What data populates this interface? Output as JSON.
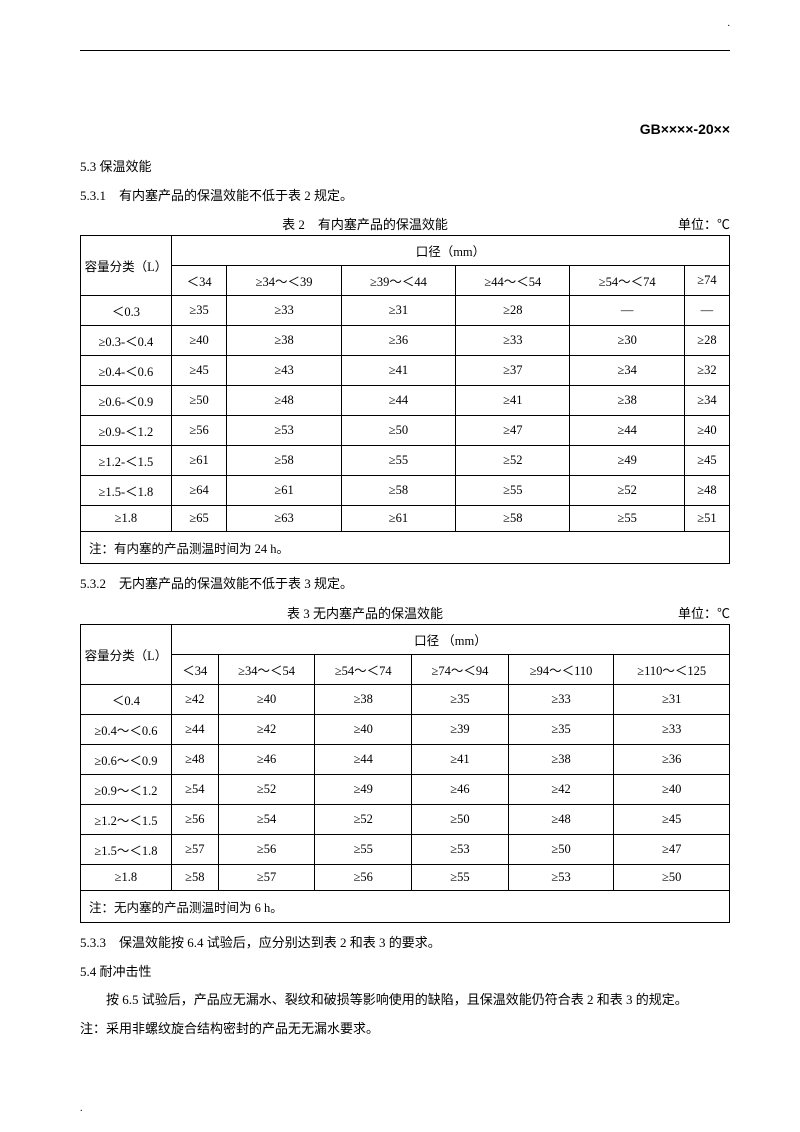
{
  "header": {
    "code": "GB××××-20××"
  },
  "s53": {
    "num": "5.3",
    "title": "保温效能",
    "s531": "5.3.1　有内塞产品的保温效能不低于表 2 规定。",
    "s532": "5.3.2　无内塞产品的保温效能不低于表 3 规定。",
    "s533": "5.3.3　保温效能按 6.4 试验后，应分别达到表 2 和表 3 的要求。"
  },
  "s54": {
    "num": "5.4",
    "title": "耐冲击性",
    "body": "按 6.5 试验后，产品应无漏水、裂纹和破损等影响使用的缺陷，且保温效能仍符合表 2 和表 3 的规定。",
    "note": "注：采用非螺纹旋合结构密封的产品无无漏水要求。"
  },
  "t2": {
    "caption": "表 2　有内塞产品的保温效能",
    "unit": "单位：℃",
    "colhead": "容量分类（L）",
    "diamhead": "口径（mm）",
    "cols": [
      "＜34",
      "≥34～＜39",
      "≥39～＜44",
      "≥44～＜54",
      "≥54～＜74",
      "≥74"
    ],
    "rows": [
      {
        "cap": "＜0.3",
        "v": [
          "≥35",
          "≥33",
          "≥31",
          "≥28",
          "—",
          "—"
        ]
      },
      {
        "cap": "≥0.3-＜0.4",
        "v": [
          "≥40",
          "≥38",
          "≥36",
          "≥33",
          "≥30",
          "≥28"
        ]
      },
      {
        "cap": "≥0.4-＜0.6",
        "v": [
          "≥45",
          "≥43",
          "≥41",
          "≥37",
          "≥34",
          "≥32"
        ]
      },
      {
        "cap": "≥0.6-＜0.9",
        "v": [
          "≥50",
          "≥48",
          "≥44",
          "≥41",
          "≥38",
          "≥34"
        ]
      },
      {
        "cap": "≥0.9-＜1.2",
        "v": [
          "≥56",
          "≥53",
          "≥50",
          "≥47",
          "≥44",
          "≥40"
        ]
      },
      {
        "cap": "≥1.2-＜1.5",
        "v": [
          "≥61",
          "≥58",
          "≥55",
          "≥52",
          "≥49",
          "≥45"
        ]
      },
      {
        "cap": "≥1.5-＜1.8",
        "v": [
          "≥64",
          "≥61",
          "≥58",
          "≥55",
          "≥52",
          "≥48"
        ]
      },
      {
        "cap": "≥1.8",
        "v": [
          "≥65",
          "≥63",
          "≥61",
          "≥58",
          "≥55",
          "≥51"
        ]
      }
    ],
    "note": "注：有内塞的产品测温时间为 24 h。"
  },
  "t3": {
    "caption": "表 3  无内塞产品的保温效能",
    "unit": "单位：℃",
    "colhead": "容量分类（L）",
    "diamhead": "口径 （mm）",
    "cols": [
      "＜34",
      "≥34～＜54",
      "≥54～＜74",
      "≥74～＜94",
      "≥94～＜110",
      "≥110～＜125"
    ],
    "rows": [
      {
        "cap": "＜0.4",
        "v": [
          "≥42",
          "≥40",
          "≥38",
          "≥35",
          "≥33",
          "≥31"
        ]
      },
      {
        "cap": "≥0.4～＜0.6",
        "v": [
          "≥44",
          "≥42",
          "≥40",
          "≥39",
          "≥35",
          "≥33"
        ]
      },
      {
        "cap": "≥0.6～＜0.9",
        "v": [
          "≥48",
          "≥46",
          "≥44",
          "≥41",
          "≥38",
          "≥36"
        ]
      },
      {
        "cap": "≥0.9～＜1.2",
        "v": [
          "≥54",
          "≥52",
          "≥49",
          "≥46",
          "≥42",
          "≥40"
        ]
      },
      {
        "cap": "≥1.2～＜1.5",
        "v": [
          "≥56",
          "≥54",
          "≥52",
          "≥50",
          "≥48",
          "≥45"
        ]
      },
      {
        "cap": "≥1.5～＜1.8",
        "v": [
          "≥57",
          "≥56",
          "≥55",
          "≥53",
          "≥50",
          "≥47"
        ]
      },
      {
        "cap": "≥1.8",
        "v": [
          "≥58",
          "≥57",
          "≥56",
          "≥55",
          "≥53",
          "≥50"
        ]
      }
    ],
    "note": "注：无内塞的产品测温时间为 6 h。"
  }
}
